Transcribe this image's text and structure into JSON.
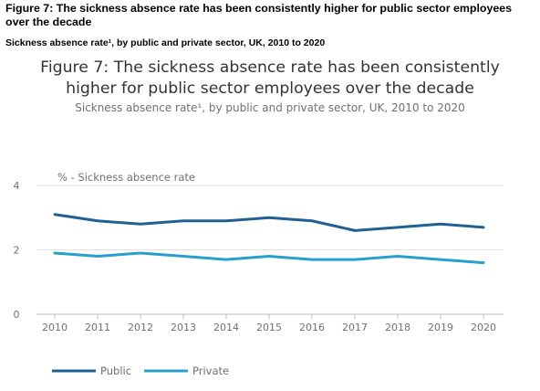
{
  "header": {
    "title": "Figure 7: The sickness absence rate has been consistently higher for public sector employees over the decade",
    "subtitle": "Sickness absence rate¹, by public and private sector, UK, 2010 to 2020"
  },
  "chart_data": {
    "type": "line",
    "title_lines": [
      "Figure 7: The sickness absence rate has been consistently",
      "higher for public sector employees over the decade"
    ],
    "subtitle": "Sickness absence rate¹, by public and private sector, UK, 2010 to 2020",
    "ylabel": "% - Sickness absence rate",
    "xlabel": "",
    "x": [
      "2010",
      "2011",
      "2012",
      "2013",
      "2014",
      "2015",
      "2016",
      "2017",
      "2018",
      "2019",
      "2020"
    ],
    "ylim": [
      0,
      4
    ],
    "yticks": [
      "0",
      "2",
      "4"
    ],
    "grid": true,
    "legend_position": "bottom-left",
    "series": [
      {
        "name": "Public",
        "color": "#206095",
        "values": [
          3.1,
          2.9,
          2.8,
          2.9,
          2.9,
          3.0,
          2.9,
          2.6,
          2.7,
          2.8,
          2.7
        ]
      },
      {
        "name": "Private",
        "color": "#27A0CC",
        "values": [
          1.9,
          1.8,
          1.9,
          1.8,
          1.7,
          1.8,
          1.7,
          1.7,
          1.8,
          1.7,
          1.6
        ]
      }
    ]
  }
}
